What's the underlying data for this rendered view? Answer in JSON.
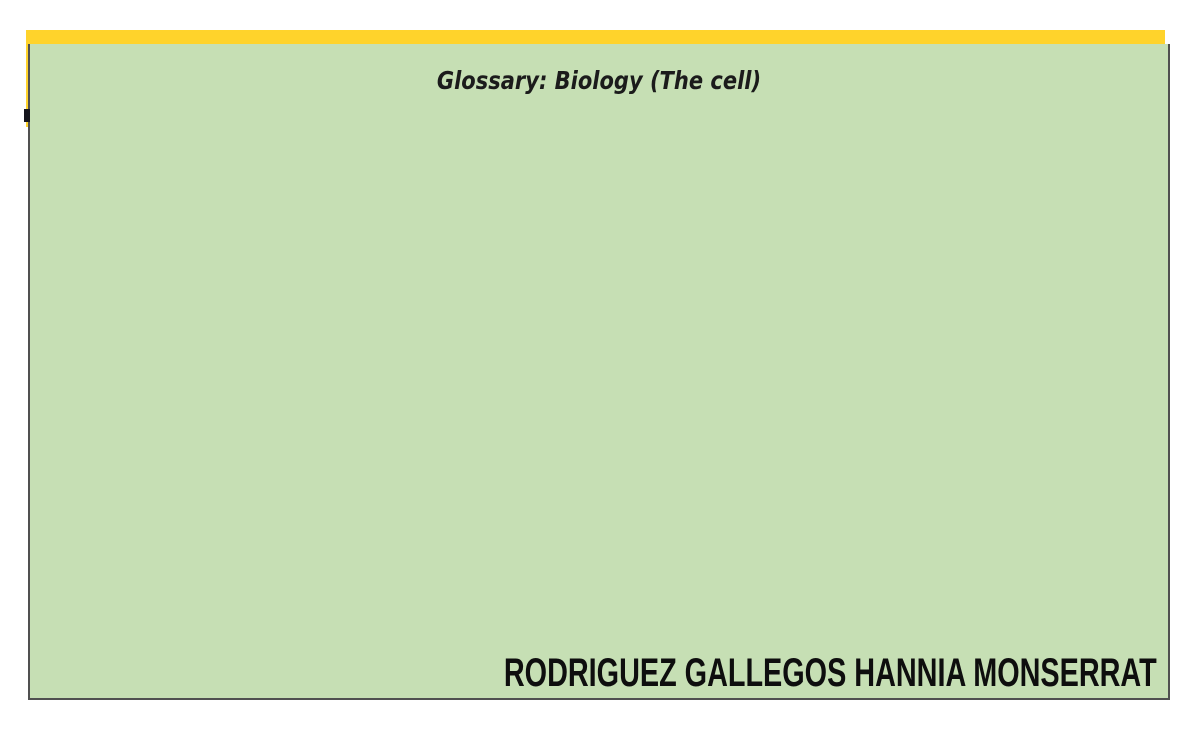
{
  "slide": {
    "title": "Glossary: Biology (The cell)",
    "author": "RODRIGUEZ GALLEGOS HANNIA MONSERRAT"
  },
  "colors": {
    "page_background": "#FFFFFF",
    "accent_yellow": "#FFD32B",
    "panel_green": "#C6DFB4",
    "panel_border": "#505050",
    "title_text": "#1B1B1B",
    "author_text": "#0E0E0E",
    "stray_mark": "#15151D"
  }
}
